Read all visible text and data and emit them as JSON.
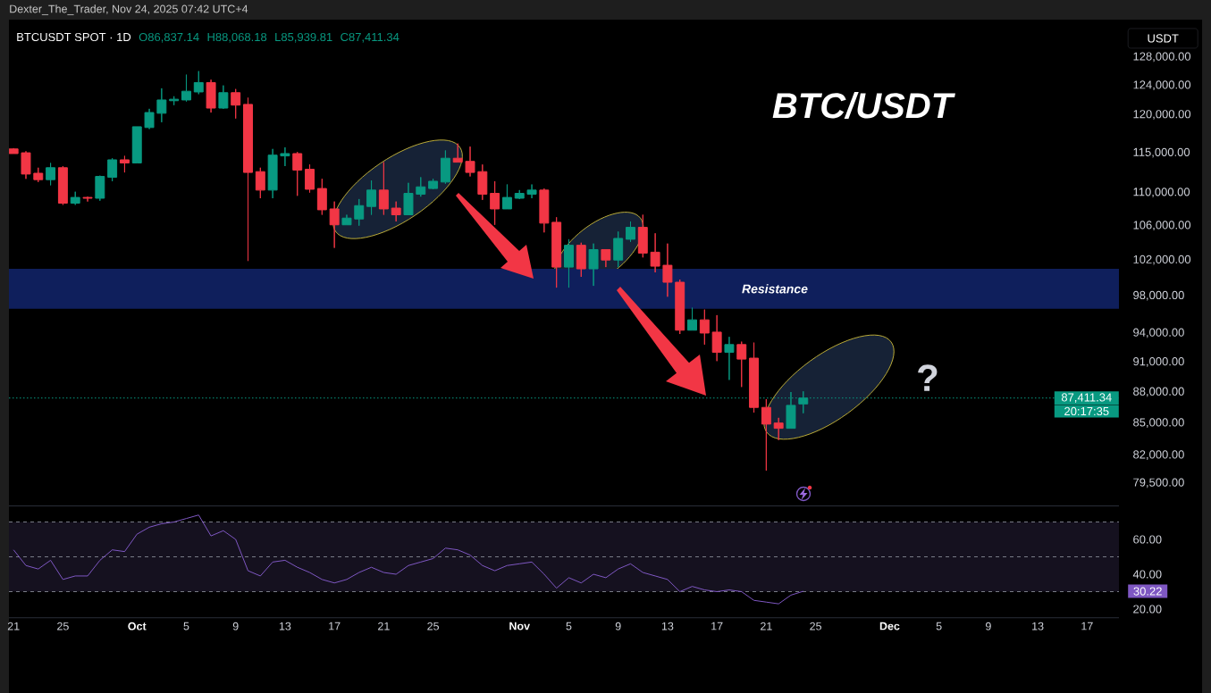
{
  "chart_data": [
    {
      "type": "candlestick",
      "title": "BTCUSDT SPOT · 1D",
      "ylabel": "USDT",
      "annotations": [
        "Dexter_The_Trader, Nov 24, 2025 07:42 UTC+4",
        "O86,837.14",
        "H88,068.18",
        "L85,939.81",
        "C87,411.34",
        "BTC/USDT",
        "?",
        "20:17:35"
      ],
      "x": [
        "2025-09-21",
        "2025-09-22",
        "2025-09-23",
        "2025-09-24",
        "2025-09-25",
        "2025-09-26",
        "2025-09-27",
        "2025-09-28",
        "2025-09-29",
        "2025-09-30",
        "2025-10-01",
        "2025-10-02",
        "2025-10-03",
        "2025-10-04",
        "2025-10-05",
        "2025-10-06",
        "2025-10-07",
        "2025-10-08",
        "2025-10-09",
        "2025-10-10",
        "2025-10-11",
        "2025-10-12",
        "2025-10-13",
        "2025-10-14",
        "2025-10-15",
        "2025-10-16",
        "2025-10-17",
        "2025-10-18",
        "2025-10-19",
        "2025-10-20",
        "2025-10-21",
        "2025-10-22",
        "2025-10-23",
        "2025-10-24",
        "2025-10-25",
        "2025-10-26",
        "2025-10-27",
        "2025-10-28",
        "2025-10-29",
        "2025-10-30",
        "2025-10-31",
        "2025-11-01",
        "2025-11-02",
        "2025-11-03",
        "2025-11-04",
        "2025-11-05",
        "2025-11-06",
        "2025-11-07",
        "2025-11-08",
        "2025-11-09",
        "2025-11-10",
        "2025-11-11",
        "2025-11-12",
        "2025-11-13",
        "2025-11-14",
        "2025-11-15",
        "2025-11-16",
        "2025-11-17",
        "2025-11-18",
        "2025-11-19",
        "2025-11-20",
        "2025-11-21",
        "2025-11-22",
        "2025-11-23",
        "2025-11-24"
      ],
      "ohlc": [
        [
          115500,
          115600,
          114900,
          114900
        ],
        [
          115000,
          115200,
          111700,
          112300
        ],
        [
          112400,
          113100,
          111300,
          111600
        ],
        [
          111600,
          113700,
          110900,
          113100
        ],
        [
          113100,
          113300,
          108500,
          108700
        ],
        [
          108700,
          110100,
          108500,
          109400
        ],
        [
          109400,
          109500,
          108900,
          109300
        ],
        [
          109300,
          112100,
          109000,
          112000
        ],
        [
          111900,
          114300,
          111400,
          114100
        ],
        [
          114100,
          114600,
          112500,
          113700
        ],
        [
          113700,
          118400,
          113700,
          118400
        ],
        [
          118300,
          120800,
          118100,
          120300
        ],
        [
          120200,
          123600,
          119000,
          122000
        ],
        [
          121900,
          122500,
          121300,
          122100
        ],
        [
          122000,
          125500,
          121800,
          123200
        ],
        [
          123100,
          126000,
          122800,
          124400
        ],
        [
          124400,
          124800,
          120300,
          120900
        ],
        [
          120900,
          124000,
          120800,
          123000
        ],
        [
          123000,
          123500,
          119500,
          121300
        ],
        [
          121400,
          122300,
          101900,
          112500
        ],
        [
          112600,
          113100,
          109300,
          110300
        ],
        [
          110300,
          115500,
          109300,
          114700
        ],
        [
          114600,
          115700,
          113300,
          114900
        ],
        [
          114900,
          115100,
          109600,
          112800
        ],
        [
          112900,
          113500,
          110000,
          110400
        ],
        [
          110500,
          111700,
          107300,
          107900
        ],
        [
          108000,
          108900,
          103400,
          106100
        ],
        [
          106100,
          107300,
          106100,
          106900
        ],
        [
          106800,
          109200,
          106000,
          108400
        ],
        [
          108300,
          111500,
          107300,
          110300
        ],
        [
          110300,
          113800,
          107300,
          108000
        ],
        [
          108100,
          108900,
          106500,
          107300
        ],
        [
          107300,
          111200,
          107300,
          109900
        ],
        [
          109800,
          111900,
          109500,
          110700
        ],
        [
          110500,
          111700,
          110400,
          111400
        ],
        [
          111300,
          115300,
          111100,
          114300
        ],
        [
          114300,
          116200,
          113800,
          113800
        ],
        [
          113900,
          115800,
          112000,
          112500
        ],
        [
          112600,
          113500,
          109100,
          109800
        ],
        [
          109900,
          111400,
          106100,
          108000
        ],
        [
          108000,
          111000,
          108000,
          109400
        ],
        [
          109300,
          110300,
          109200,
          109900
        ],
        [
          109800,
          111000,
          109300,
          110300
        ],
        [
          110300,
          110500,
          105200,
          106300
        ],
        [
          106400,
          107000,
          98900,
          101200
        ],
        [
          101200,
          104400,
          98900,
          103700
        ],
        [
          103700,
          104000,
          100100,
          101000
        ],
        [
          101000,
          103900,
          99100,
          103200
        ],
        [
          103200,
          103200,
          101200,
          102000
        ],
        [
          102000,
          105300,
          101200,
          104500
        ],
        [
          104400,
          106500,
          104100,
          105800
        ],
        [
          105800,
          107300,
          102300,
          102800
        ],
        [
          102900,
          105100,
          100600,
          101300
        ],
        [
          101400,
          103900,
          97900,
          99500
        ],
        [
          99500,
          99800,
          93900,
          94300
        ],
        [
          94300,
          96700,
          94300,
          95400
        ],
        [
          95400,
          96500,
          92800,
          94000
        ],
        [
          94100,
          95900,
          91100,
          92000
        ],
        [
          92000,
          93600,
          89200,
          92800
        ],
        [
          92800,
          93100,
          88500,
          91300
        ],
        [
          91400,
          93000,
          86000,
          86500
        ],
        [
          86500,
          87300,
          80600,
          84900
        ],
        [
          85000,
          85500,
          83400,
          84500
        ],
        [
          84500,
          88000,
          84500,
          86700
        ],
        [
          86837.14,
          88068.18,
          85939.81,
          87411.34
        ]
      ],
      "colors": [
        "#f23645",
        "#f23645",
        "#f23645",
        "#089981",
        "#f23645",
        "#089981",
        "#f23645",
        "#089981",
        "#089981",
        "#f23645",
        "#089981",
        "#089981",
        "#089981",
        "#089981",
        "#089981",
        "#089981",
        "#f23645",
        "#089981",
        "#f23645",
        "#f23645",
        "#f23645",
        "#089981",
        "#089981",
        "#f23645",
        "#f23645",
        "#f23645",
        "#f23645",
        "#089981",
        "#089981",
        "#089981",
        "#f23645",
        "#f23645",
        "#089981",
        "#089981",
        "#089981",
        "#089981",
        "#f23645",
        "#f23645",
        "#f23645",
        "#f23645",
        "#089981",
        "#089981",
        "#089981",
        "#f23645",
        "#f23645",
        "#089981",
        "#f23645",
        "#089981",
        "#f23645",
        "#089981",
        "#089981",
        "#f23645",
        "#f23645",
        "#f23645",
        "#f23645",
        "#089981",
        "#f23645",
        "#f23645",
        "#089981",
        "#f23645",
        "#f23645",
        "#f23645",
        "#f23645",
        "#089981",
        "#089981"
      ],
      "xlim": [
        "2025-09-20T15:00",
        "2025-12-19T14:00"
      ],
      "ylim": [
        77500,
        133500
      ],
      "log": "y",
      "yticks": [
        {
          "value": 79500,
          "label": "79,500.00"
        },
        {
          "value": 82000,
          "label": "82,000.00"
        },
        {
          "value": 85000,
          "label": "85,000.00"
        },
        {
          "value": 88000,
          "label": "88,000.00"
        },
        {
          "value": 91000,
          "label": "91,000.00"
        },
        {
          "value": 94000,
          "label": "94,000.00"
        },
        {
          "value": 98000,
          "label": "98,000.00"
        },
        {
          "value": 102000,
          "label": "102,000.00"
        },
        {
          "value": 106000,
          "label": "106,000.00"
        },
        {
          "value": 110000,
          "label": "110,000.00"
        },
        {
          "value": 115000,
          "label": "115,000.00"
        },
        {
          "value": 120000,
          "label": "120,000.00"
        },
        {
          "value": 124000,
          "label": "124,000.00"
        },
        {
          "value": 128000,
          "label": "128,000.00"
        }
      ],
      "tick_labels": "y",
      "ref_lines": [
        {
          "axis": "y",
          "value": 87411.34,
          "label": "87,411.34",
          "color": "#089981",
          "line_style": "dotted"
        }
      ],
      "bands": [
        {
          "axis": "y",
          "from": 96600,
          "to": 101000,
          "label": "Resistance",
          "color": "#0f1f5c"
        }
      ]
    },
    {
      "type": "line",
      "x": [
        "2025-09-21",
        "2025-09-22",
        "2025-09-23",
        "2025-09-24",
        "2025-09-25",
        "2025-09-26",
        "2025-09-27",
        "2025-09-28",
        "2025-09-29",
        "2025-09-30",
        "2025-10-01",
        "2025-10-02",
        "2025-10-03",
        "2025-10-04",
        "2025-10-05",
        "2025-10-06",
        "2025-10-07",
        "2025-10-08",
        "2025-10-09",
        "2025-10-10",
        "2025-10-11",
        "2025-10-12",
        "2025-10-13",
        "2025-10-14",
        "2025-10-15",
        "2025-10-16",
        "2025-10-17",
        "2025-10-18",
        "2025-10-19",
        "2025-10-20",
        "2025-10-21",
        "2025-10-22",
        "2025-10-23",
        "2025-10-24",
        "2025-10-25",
        "2025-10-26",
        "2025-10-27",
        "2025-10-28",
        "2025-10-29",
        "2025-10-30",
        "2025-10-31",
        "2025-11-01",
        "2025-11-02",
        "2025-11-03",
        "2025-11-04",
        "2025-11-05",
        "2025-11-06",
        "2025-11-07",
        "2025-11-08",
        "2025-11-09",
        "2025-11-10",
        "2025-11-11",
        "2025-11-12",
        "2025-11-13",
        "2025-11-14",
        "2025-11-15",
        "2025-11-16",
        "2025-11-17",
        "2025-11-18",
        "2025-11-19",
        "2025-11-20",
        "2025-11-21",
        "2025-11-22",
        "2025-11-23",
        "2025-11-24"
      ],
      "values": [
        54,
        45,
        43,
        48,
        37,
        39,
        39,
        48,
        54,
        53,
        63,
        67,
        69,
        70,
        72,
        74,
        62,
        65,
        60,
        42,
        39,
        47,
        48,
        44,
        41,
        37,
        35,
        37,
        41,
        44,
        41,
        40,
        45,
        47,
        49,
        55,
        54,
        51,
        45,
        42,
        45,
        46,
        47,
        40,
        32,
        38,
        35,
        40,
        38,
        43,
        46,
        41,
        39,
        37,
        30,
        33,
        31,
        30,
        31,
        30,
        25,
        24,
        23,
        28,
        30.22
      ],
      "color": "#7e57c2",
      "xlim": [
        "2025-09-20T15:00",
        "2025-12-19T14:00"
      ],
      "ylim": [
        15,
        79
      ],
      "xticks": [
        {
          "value": "2025-09-21",
          "label": "21"
        },
        {
          "value": "2025-09-25",
          "label": "25"
        },
        {
          "value": "2025-10-01",
          "label": "Oct"
        },
        {
          "value": "2025-10-05",
          "label": "5"
        },
        {
          "value": "2025-10-09",
          "label": "9"
        },
        {
          "value": "2025-10-13",
          "label": "13"
        },
        {
          "value": "2025-10-17",
          "label": "17"
        },
        {
          "value": "2025-10-21",
          "label": "21"
        },
        {
          "value": "2025-10-25",
          "label": "25"
        },
        {
          "value": "2025-11-01",
          "label": "Nov"
        },
        {
          "value": "2025-11-05",
          "label": "5"
        },
        {
          "value": "2025-11-09",
          "label": "9"
        },
        {
          "value": "2025-11-13",
          "label": "13"
        },
        {
          "value": "2025-11-17",
          "label": "17"
        },
        {
          "value": "2025-11-21",
          "label": "21"
        },
        {
          "value": "2025-11-25",
          "label": "25"
        },
        {
          "value": "2025-12-01",
          "label": "Dec"
        },
        {
          "value": "2025-12-05",
          "label": "5"
        },
        {
          "value": "2025-12-09",
          "label": "9"
        },
        {
          "value": "2025-12-13",
          "label": "13"
        },
        {
          "value": "2025-12-17",
          "label": "17"
        }
      ],
      "yticks": [
        {
          "value": 20,
          "label": "20.00"
        },
        {
          "value": 40,
          "label": "40.00"
        },
        {
          "value": 60,
          "label": "60.00"
        }
      ],
      "ref_lines": [
        {
          "axis": "y",
          "value": 70,
          "color": "#787b86",
          "line_style": "dashed"
        },
        {
          "axis": "y",
          "value": 50,
          "color": "#787b86",
          "line_style": "dashed"
        },
        {
          "axis": "y",
          "value": 30,
          "color": "#787b86",
          "line_style": "dashed"
        }
      ],
      "bands": [
        {
          "axis": "y",
          "from": 30,
          "to": 70,
          "color": "#15111f"
        }
      ],
      "annotations": [
        "30.22"
      ]
    }
  ]
}
